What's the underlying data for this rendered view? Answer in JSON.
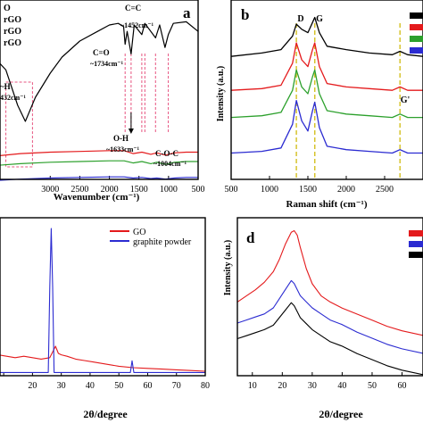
{
  "colors": {
    "black": "#000000",
    "red": "#e41a1c",
    "green": "#2ca02c",
    "blue": "#2b2bd1",
    "marker": "#e75480",
    "raman_guide": "#d4c020"
  },
  "chart_data": [
    {
      "id": "a",
      "panel_label": "a",
      "type": "line",
      "xlabel": "Wavenumber (cm⁻¹)",
      "ylabel": "",
      "xlim": [
        4000,
        500
      ],
      "x_tick_labels": [
        "000",
        "3000",
        "2500",
        "2000",
        "1500",
        "1000",
        "500"
      ],
      "legend_partial": [
        "O",
        "rGO",
        "rGO",
        "rGO"
      ],
      "annotations": [
        {
          "text": "C=C",
          "x": 1452
        },
        {
          "text": "~1452cm⁻¹",
          "x": 1452
        },
        {
          "text": "C=O",
          "x": 1734
        },
        {
          "text": "~1734cm⁻¹",
          "x": 1734
        },
        {
          "text": "O-H",
          "x": 1633
        },
        {
          "text": "~1633cm⁻¹",
          "x": 1633
        },
        {
          "text": "C-O-C",
          "x": 1004
        },
        {
          "text": "~1004cm⁻¹",
          "x": 1004
        },
        {
          "text": "~H",
          "x": 3500
        },
        {
          "text": "432cm⁻¹",
          "x": 3500
        }
      ],
      "series": [
        {
          "x": [
            4000,
            3750,
            3550,
            3420,
            3250,
            3000,
            2800,
            2500,
            2200,
            2000,
            1850,
            1760,
            1734,
            1700,
            1633,
            1580,
            1452,
            1400,
            1220,
            1150,
            1060,
            1004,
            920,
            700,
            500
          ],
          "values": [
            72,
            62,
            40,
            30,
            45,
            60,
            70,
            80,
            86,
            90,
            91,
            89,
            78,
            86,
            72,
            90,
            84,
            91,
            82,
            90,
            76,
            84,
            91,
            92,
            86
          ]
        },
        {
          "x": [
            4000,
            3500,
            3000,
            2500,
            2000,
            1750,
            1600,
            1450,
            1300,
            1200,
            1050,
            900,
            700,
            500
          ],
          "values": [
            30,
            34,
            36,
            37,
            38,
            38,
            34,
            36,
            33,
            35,
            32,
            35,
            36,
            36
          ]
        },
        {
          "x": [
            4000,
            3500,
            3000,
            2500,
            2000,
            1750,
            1600,
            1450,
            1300,
            1200,
            1050,
            900,
            700,
            500
          ],
          "values": [
            24,
            27,
            29,
            30,
            31,
            31,
            28,
            30,
            27,
            29,
            26,
            29,
            30,
            30
          ]
        },
        {
          "x": [
            4000,
            3500,
            3000,
            2500,
            2000,
            1750,
            1600,
            1450,
            1300,
            1200,
            1050,
            900,
            700,
            500
          ],
          "values": [
            12,
            15,
            17,
            18,
            19,
            19,
            17,
            18,
            16,
            17,
            15,
            17,
            18,
            18
          ]
        }
      ],
      "markers_x": [
        1734,
        1633,
        1452,
        1400,
        1220,
        1004
      ]
    },
    {
      "id": "b",
      "panel_label": "b",
      "type": "line",
      "xlabel": "Raman shift (cm⁻¹)",
      "ylabel": "Intensity (a.u.)",
      "xlim": [
        500,
        3000
      ],
      "x_ticks": [
        500,
        1000,
        1500,
        2000,
        2500
      ],
      "peak_labels": [
        {
          "text": "D",
          "x": 1350
        },
        {
          "text": "G",
          "x": 1590
        },
        {
          "text": "G'",
          "x": 2700
        }
      ],
      "series": [
        {
          "x": [
            500,
            900,
            1150,
            1300,
            1350,
            1420,
            1500,
            1560,
            1590,
            1650,
            1750,
            2000,
            2300,
            2600,
            2700,
            2800,
            3000
          ],
          "values": [
            72,
            74,
            76,
            84,
            91,
            88,
            86,
            92,
            95,
            86,
            78,
            76,
            74,
            73,
            75,
            73,
            72
          ]
        },
        {
          "x": [
            500,
            900,
            1150,
            1300,
            1350,
            1420,
            1500,
            1560,
            1590,
            1650,
            1750,
            2000,
            2300,
            2600,
            2700,
            2800,
            3000
          ],
          "values": [
            52,
            53,
            55,
            68,
            80,
            70,
            66,
            76,
            80,
            66,
            56,
            54,
            53,
            52,
            54,
            52,
            52
          ]
        },
        {
          "x": [
            500,
            900,
            1150,
            1300,
            1350,
            1420,
            1500,
            1560,
            1590,
            1650,
            1750,
            2000,
            2300,
            2600,
            2700,
            2800,
            3000
          ],
          "values": [
            36,
            37,
            39,
            52,
            64,
            54,
            50,
            60,
            64,
            50,
            40,
            38,
            37,
            36,
            38,
            36,
            36
          ]
        },
        {
          "x": [
            500,
            900,
            1150,
            1300,
            1350,
            1420,
            1500,
            1560,
            1590,
            1650,
            1750,
            2000,
            2300,
            2600,
            2700,
            2800,
            3000
          ],
          "values": [
            15,
            16,
            18,
            32,
            46,
            34,
            28,
            40,
            45,
            30,
            19,
            17,
            16,
            15,
            17,
            15,
            15
          ]
        }
      ]
    },
    {
      "id": "c",
      "panel_label": "",
      "type": "line",
      "xlabel": "2θ/degree",
      "ylabel": "",
      "xlim": [
        5,
        80
      ],
      "x_tick_labels": [
        "",
        "20",
        "30",
        "40",
        "50",
        "60",
        "70",
        "80"
      ],
      "x_ticks": [
        10,
        20,
        30,
        40,
        50,
        60,
        70,
        80
      ],
      "legend": [
        "GO",
        "graphite powder"
      ],
      "series": [
        {
          "name": "GO",
          "x": [
            5,
            8,
            11,
            14,
            17,
            20,
            23,
            26,
            28,
            29,
            30,
            32,
            35,
            38,
            41,
            44,
            47,
            50,
            55,
            60,
            65,
            70,
            75,
            80
          ],
          "values": [
            12,
            14,
            13,
            12,
            13,
            12,
            11,
            12,
            20,
            15,
            14,
            13,
            11,
            10,
            9,
            8,
            7,
            6,
            5,
            4.5,
            4,
            3.5,
            3,
            2.5
          ]
        },
        {
          "name": "graphite powder",
          "x": [
            5,
            25.5,
            26,
            26.5,
            27,
            27.5,
            50,
            54,
            54.6,
            55.2,
            56,
            80
          ],
          "values": [
            1,
            1,
            60,
            100,
            60,
            1,
            1,
            1,
            9,
            1,
            1,
            1
          ]
        }
      ]
    },
    {
      "id": "d",
      "panel_label": "d",
      "type": "line",
      "xlabel": "2θ/degree",
      "ylabel": "Intensity (a.u.)",
      "xlim": [
        5,
        67
      ],
      "x_ticks": [
        10,
        20,
        30,
        40,
        50,
        60
      ],
      "series": [
        {
          "x": [
            5,
            8,
            11,
            14,
            17,
            19,
            21,
            23,
            24,
            25,
            26,
            28,
            30,
            33,
            36,
            40,
            45,
            50,
            55,
            60,
            67
          ],
          "values": [
            48,
            52,
            56,
            61,
            68,
            76,
            86,
            94,
            95,
            92,
            84,
            70,
            60,
            52,
            48,
            44,
            40,
            36,
            32,
            29,
            26
          ]
        },
        {
          "x": [
            5,
            8,
            11,
            14,
            17,
            19,
            21,
            23,
            24,
            25,
            26,
            28,
            30,
            33,
            36,
            40,
            45,
            50,
            55,
            60,
            67
          ],
          "values": [
            40,
            42,
            44,
            46,
            50,
            56,
            62,
            68,
            66,
            62,
            58,
            54,
            50,
            46,
            42,
            39,
            34,
            30,
            26,
            23,
            20
          ]
        },
        {
          "x": [
            5,
            8,
            11,
            14,
            17,
            19,
            21,
            23,
            24,
            25,
            26,
            28,
            30,
            33,
            36,
            40,
            45,
            50,
            55,
            60,
            67
          ],
          "values": [
            36,
            38,
            40,
            42,
            45,
            50,
            55,
            60,
            58,
            54,
            50,
            46,
            42,
            38,
            34,
            31,
            26,
            22,
            18,
            15,
            12
          ]
        }
      ]
    }
  ]
}
